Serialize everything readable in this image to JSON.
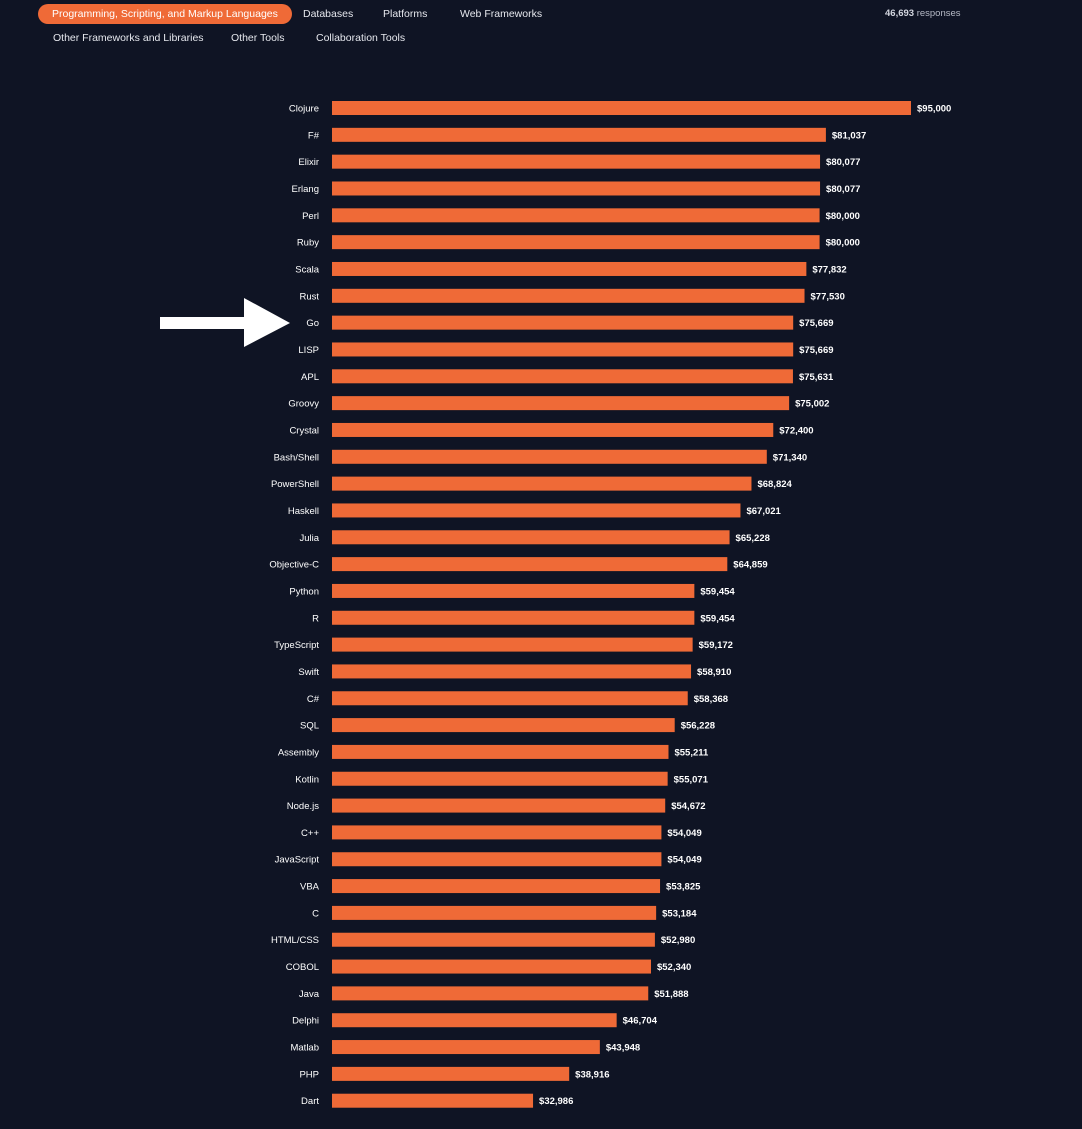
{
  "tabs": [
    {
      "label": "Programming, Scripting, and Markup Languages",
      "active": true
    },
    {
      "label": "Databases",
      "active": false
    },
    {
      "label": "Platforms",
      "active": false
    },
    {
      "label": "Web Frameworks",
      "active": false
    },
    {
      "label": "Other Frameworks and Libraries",
      "active": false
    },
    {
      "label": "Other Tools",
      "active": false
    },
    {
      "label": "Collaboration Tools",
      "active": false
    }
  ],
  "responses": {
    "count": "46,693",
    "label": "responses"
  },
  "colors": {
    "bar": "#ef6a37",
    "background": "#0f1424",
    "accent": "#ef6a37"
  },
  "arrow": {
    "icon": "right-arrow-icon",
    "points_to": "Go"
  },
  "chart_data": {
    "type": "bar",
    "orientation": "horizontal",
    "categories": [
      "Clojure",
      "F#",
      "Elixir",
      "Erlang",
      "Perl",
      "Ruby",
      "Scala",
      "Rust",
      "Go",
      "LISP",
      "APL",
      "Groovy",
      "Crystal",
      "Bash/Shell",
      "PowerShell",
      "Haskell",
      "Julia",
      "Objective-C",
      "Python",
      "R",
      "TypeScript",
      "Swift",
      "C#",
      "SQL",
      "Assembly",
      "Kotlin",
      "Node.js",
      "C++",
      "JavaScript",
      "VBA",
      "C",
      "HTML/CSS",
      "COBOL",
      "Java",
      "Delphi",
      "Matlab",
      "PHP",
      "Dart"
    ],
    "values": [
      95000,
      81037,
      80077,
      80077,
      80000,
      80000,
      77832,
      77530,
      75669,
      75669,
      75631,
      75002,
      72400,
      71340,
      68824,
      67021,
      65228,
      64859,
      59454,
      59454,
      59172,
      58910,
      58368,
      56228,
      55211,
      55071,
      54672,
      54049,
      54049,
      53825,
      53184,
      52980,
      52340,
      51888,
      46704,
      43948,
      38916,
      32986
    ],
    "labels": [
      "$95,000",
      "$81,037",
      "$80,077",
      "$80,077",
      "$80,000",
      "$80,000",
      "$77,832",
      "$77,530",
      "$75,669",
      "$75,669",
      "$75,631",
      "$75,002",
      "$72,400",
      "$71,340",
      "$68,824",
      "$67,021",
      "$65,228",
      "$64,859",
      "$59,454",
      "$59,454",
      "$59,172",
      "$58,910",
      "$58,368",
      "$56,228",
      "$55,211",
      "$55,071",
      "$54,672",
      "$54,049",
      "$54,049",
      "$53,825",
      "$53,184",
      "$52,980",
      "$52,340",
      "$51,888",
      "$46,704",
      "$43,948",
      "$38,916",
      "$32,986"
    ],
    "xlim": [
      0,
      95000
    ],
    "grid": false,
    "legend": false
  }
}
